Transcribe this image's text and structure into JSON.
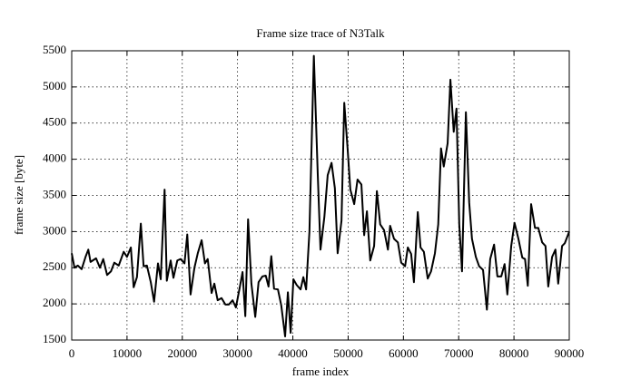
{
  "chart_data": {
    "type": "line",
    "title": "Frame size trace of N3Talk",
    "x_label": "frame index",
    "y_label": "frame size [byte]",
    "color": "#000000",
    "grid": true,
    "xlim": [
      0,
      90000
    ],
    "xticks": [
      0,
      10000,
      20000,
      30000,
      40000,
      50000,
      60000,
      70000,
      80000,
      90000
    ],
    "ylim": [
      1500,
      5500
    ],
    "yticks": [
      1500,
      2000,
      2500,
      3000,
      3500,
      4000,
      4500,
      5000,
      5500
    ],
    "x": [
      0,
      500,
      1100,
      1800,
      2500,
      3000,
      3400,
      4400,
      5100,
      5700,
      6400,
      7100,
      7700,
      8500,
      9400,
      10000,
      10700,
      11200,
      11800,
      12500,
      13000,
      13600,
      14300,
      14900,
      15600,
      16100,
      16800,
      17200,
      17900,
      18400,
      19100,
      19700,
      20400,
      20900,
      21500,
      22200,
      22800,
      23500,
      24100,
      24600,
      25300,
      25800,
      26400,
      27100,
      27800,
      28400,
      29100,
      29700,
      30400,
      30900,
      31400,
      31900,
      32500,
      33200,
      33800,
      34500,
      35100,
      35600,
      36100,
      36600,
      37300,
      37900,
      38600,
      39100,
      39600,
      40100,
      40700,
      41400,
      41900,
      42400,
      43000,
      43800,
      44500,
      45000,
      45700,
      46300,
      47000,
      47600,
      48100,
      48800,
      49300,
      49900,
      50400,
      51100,
      51700,
      52400,
      52900,
      53400,
      54000,
      54700,
      55200,
      55800,
      56500,
      57200,
      57600,
      58300,
      59000,
      59600,
      60300,
      60800,
      61400,
      61900,
      62600,
      63100,
      63700,
      64400,
      65000,
      65700,
      66300,
      66800,
      67300,
      68000,
      68500,
      69100,
      69600,
      70100,
      70600,
      71300,
      71900,
      72400,
      73100,
      73700,
      74400,
      75100,
      75700,
      76400,
      77000,
      77700,
      78300,
      78800,
      79500,
      80100,
      80800,
      81500,
      82000,
      82500,
      83100,
      83800,
      84400,
      85100,
      85700,
      86200,
      86900,
      87500,
      88000,
      88700,
      89200,
      90000
    ],
    "values": [
      2700,
      2500,
      2530,
      2480,
      2650,
      2750,
      2580,
      2630,
      2500,
      2620,
      2400,
      2450,
      2570,
      2530,
      2720,
      2650,
      2780,
      2230,
      2370,
      3110,
      2520,
      2530,
      2300,
      2030,
      2560,
      2340,
      3580,
      2320,
      2600,
      2360,
      2600,
      2620,
      2560,
      2960,
      2130,
      2500,
      2700,
      2880,
      2560,
      2620,
      2150,
      2280,
      2050,
      2080,
      1990,
      1990,
      2050,
      1950,
      2230,
      2440,
      1830,
      3170,
      2280,
      1820,
      2300,
      2380,
      2390,
      2240,
      2660,
      2210,
      2200,
      1980,
      1550,
      2160,
      1600,
      2340,
      2260,
      2200,
      2370,
      2200,
      3000,
      5430,
      3800,
      2750,
      3200,
      3780,
      3950,
      3600,
      2700,
      3150,
      4780,
      4150,
      3580,
      3380,
      3720,
      3650,
      2950,
      3280,
      2600,
      2800,
      3560,
      3100,
      3020,
      2750,
      3080,
      2900,
      2850,
      2570,
      2520,
      2780,
      2690,
      2300,
      3270,
      2780,
      2720,
      2350,
      2450,
      2700,
      3100,
      4150,
      3900,
      4220,
      5100,
      4380,
      4700,
      3100,
      2450,
      4650,
      3400,
      2900,
      2650,
      2520,
      2470,
      1920,
      2620,
      2820,
      2380,
      2380,
      2550,
      2130,
      2800,
      3120,
      2900,
      2640,
      2620,
      2250,
      3380,
      3050,
      3050,
      2850,
      2800,
      2240,
      2650,
      2750,
      2280,
      2800,
      2840,
      3000
    ]
  }
}
